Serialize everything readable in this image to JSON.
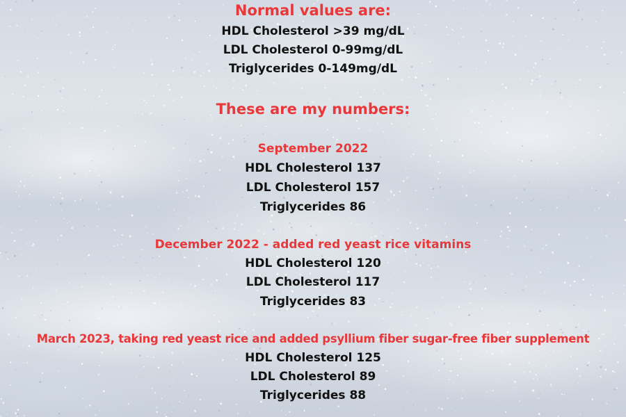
{
  "normal_values": {
    "heading": "Normal values are:",
    "hdl": "HDL Cholesterol >39 mg/dL",
    "ldl": "LDL Cholesterol 0-99mg/dL",
    "triglycerides": "Triglycerides 0-149mg/dL"
  },
  "my_numbers": {
    "heading": "These are my numbers:"
  },
  "readings": [
    {
      "label": "September 2022",
      "hdl": "HDL Cholesterol 137",
      "ldl": "LDL Cholesterol 157",
      "triglycerides": "Triglycerides 86"
    },
    {
      "label": "December 2022 - added red yeast rice vitamins",
      "hdl": "HDL Cholesterol 120",
      "ldl": "LDL Cholesterol 117",
      "triglycerides": "Triglycerides 83"
    },
    {
      "label": "March 2023, taking red yeast rice and added psyllium fiber sugar-free fiber supplement",
      "hdl": "HDL Cholesterol 125",
      "ldl": "LDL Cholesterol 89",
      "triglycerides": "Triglycerides 88"
    }
  ],
  "colors": {
    "heading_red": "#e8383a",
    "body_text": "#111111",
    "background": "#d4dae3"
  }
}
